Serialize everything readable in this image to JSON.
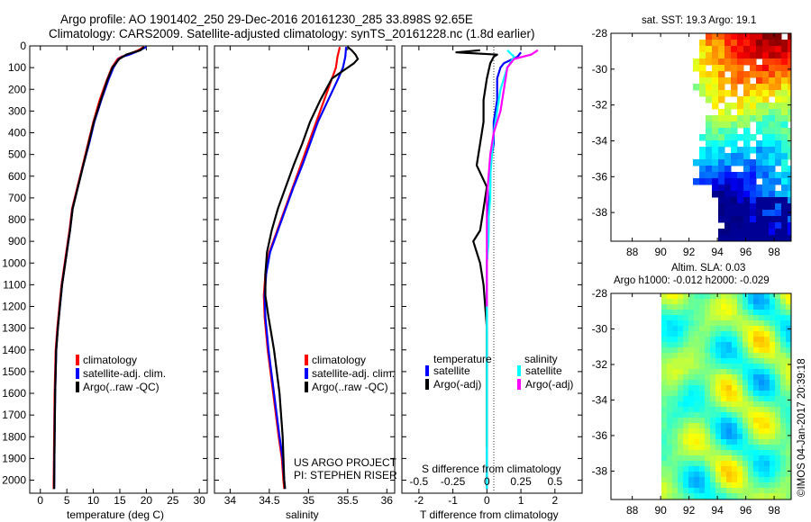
{
  "header": {
    "title_line1": "Argo profile: AO 1901402_250 29-Dec-2016 20161230_285 33.898S 92.65E",
    "title_line2": "Climatology: CARS2009. Satellite-adjusted climatology: synTS_20161228.nc (1.8d earlier)"
  },
  "colors": {
    "climatology": "#ff0000",
    "satellite": "#0000ff",
    "argo": "#000000",
    "satellite_diff": "#00ffff",
    "argo_diff": "#ff00ff",
    "zero_line": "#000000"
  },
  "chart_data": [
    {
      "id": "temperature",
      "type": "line",
      "xlabel": "temperature (deg C)",
      "ylabel": "",
      "xlim": [
        -2,
        31.5
      ],
      "ylim": [
        2060,
        0
      ],
      "xticks": [
        "0",
        "5",
        "10",
        "15",
        "20",
        "25",
        "30"
      ],
      "xtick_values": [
        0,
        5,
        10,
        15,
        20,
        25,
        30
      ],
      "yticks": [
        "0",
        "100",
        "200",
        "300",
        "400",
        "500",
        "600",
        "700",
        "800",
        "900",
        "1000",
        "1100",
        "1200",
        "1300",
        "1400",
        "1500",
        "1600",
        "1700",
        "1800",
        "1900",
        "2000"
      ],
      "ytick_values": [
        0,
        100,
        200,
        300,
        400,
        500,
        600,
        700,
        800,
        900,
        1000,
        1100,
        1200,
        1300,
        1400,
        1500,
        1600,
        1700,
        1800,
        1900,
        2000
      ],
      "legend": [
        "climatology",
        "satellite-adj. clim.",
        "Argo(..raw -QC)"
      ],
      "series": [
        {
          "name": "climatology",
          "color": "#ff0000",
          "x": [
            19.5,
            18.5,
            16.5,
            15.3,
            14.6,
            13.5,
            12.5,
            11.2,
            10.0,
            9.0,
            8.0,
            7.0,
            6.0,
            5.5,
            5.2,
            4.6,
            4.0,
            3.6,
            3.2,
            2.9,
            2.7,
            2.6,
            2.5
          ],
          "y": [
            5,
            20,
            40,
            50,
            60,
            100,
            160,
            250,
            350,
            450,
            550,
            650,
            750,
            850,
            900,
            1000,
            1100,
            1200,
            1300,
            1400,
            1600,
            1800,
            2040
          ]
        },
        {
          "name": "satellite-adj. clim.",
          "color": "#0000ff",
          "x": [
            20.0,
            18.8,
            16.8,
            15.5,
            14.8,
            13.8,
            12.8,
            11.5,
            10.2,
            9.2,
            8.1,
            7.1,
            6.1,
            5.6,
            5.3,
            4.7,
            4.1,
            3.7,
            3.3,
            3.0,
            2.8,
            2.7,
            2.6
          ],
          "y": [
            5,
            20,
            40,
            50,
            60,
            100,
            160,
            250,
            350,
            450,
            550,
            650,
            750,
            850,
            900,
            1000,
            1100,
            1200,
            1300,
            1400,
            1600,
            1800,
            2040
          ]
        },
        {
          "name": "Argo(..raw -QC)",
          "color": "#000000",
          "x": [
            19.6,
            18.9,
            16.2,
            15.6,
            14.9,
            13.6,
            12.6,
            11.4,
            10.1,
            9.1,
            8.1,
            7.1,
            6.1,
            5.6,
            5.3,
            4.7,
            4.1,
            3.7,
            3.3,
            3.0,
            2.8,
            2.7,
            2.6
          ],
          "y": [
            5,
            20,
            40,
            50,
            60,
            100,
            160,
            250,
            350,
            450,
            550,
            650,
            750,
            850,
            900,
            1000,
            1100,
            1200,
            1300,
            1400,
            1600,
            1800,
            2040
          ]
        }
      ]
    },
    {
      "id": "salinity",
      "type": "line",
      "xlabel": "salinity",
      "xlim": [
        33.8,
        36.1
      ],
      "ylim": [
        2060,
        0
      ],
      "xticks": [
        "34",
        "34.5",
        "35",
        "35.5",
        "36"
      ],
      "xtick_values": [
        34,
        34.5,
        35,
        35.5,
        36
      ],
      "legend": [
        "climatology",
        "satellite-adj. clim.",
        "Argo(..raw -QC)"
      ],
      "annotations": [
        "US ARGO PROJECT",
        "PI: STEPHEN RISER"
      ],
      "series": [
        {
          "name": "climatology",
          "color": "#ff0000",
          "x": [
            35.4,
            35.37,
            35.35,
            35.3,
            35.2,
            35.1,
            35.0,
            34.9,
            34.8,
            34.7,
            34.6,
            34.5,
            34.45,
            34.43,
            34.44,
            34.48,
            34.55,
            34.62,
            34.66,
            34.68,
            34.69
          ],
          "y": [
            5,
            50,
            100,
            150,
            250,
            350,
            450,
            550,
            650,
            750,
            850,
            950,
            1050,
            1150,
            1250,
            1400,
            1600,
            1800,
            1900,
            2000,
            2040
          ]
        },
        {
          "name": "satellite-adj. clim.",
          "color": "#0000ff",
          "x": [
            35.48,
            35.47,
            35.44,
            35.38,
            35.25,
            35.12,
            35.02,
            34.92,
            34.81,
            34.71,
            34.61,
            34.51,
            34.46,
            34.44,
            34.45,
            34.49,
            34.56,
            34.63,
            34.67,
            34.69,
            34.7
          ],
          "y": [
            5,
            50,
            100,
            150,
            250,
            350,
            450,
            550,
            650,
            750,
            850,
            950,
            1050,
            1150,
            1250,
            1400,
            1600,
            1800,
            1900,
            2000,
            2040
          ]
        },
        {
          "name": "Argo(..raw -QC)",
          "color": "#000000",
          "x": [
            35.5,
            35.55,
            35.6,
            35.63,
            35.58,
            35.5,
            35.3,
            35.15,
            35.02,
            34.92,
            34.81,
            34.71,
            34.61,
            34.53,
            34.47,
            34.45,
            34.45,
            34.49,
            34.56,
            34.63,
            34.67,
            34.69,
            34.7
          ],
          "y": [
            5,
            20,
            40,
            60,
            80,
            100,
            150,
            250,
            350,
            450,
            550,
            650,
            750,
            850,
            950,
            1050,
            1150,
            1250,
            1400,
            1600,
            1800,
            2000,
            2040
          ]
        }
      ]
    },
    {
      "id": "difference",
      "type": "line",
      "xlabel": "T difference from climatology",
      "top_axis_label": "S difference from climatology",
      "xlim": [
        -2.5,
        2.8
      ],
      "ylim": [
        2060,
        0
      ],
      "xticks": [
        "-2",
        "-1",
        "0",
        "1",
        "2"
      ],
      "xtick_values": [
        -2,
        -1,
        0,
        1,
        2
      ],
      "s_ticks": [
        "-0.5",
        "-0.25",
        "0",
        "0.25",
        "0.5"
      ],
      "s_tick_values": [
        -2,
        -1,
        0,
        1,
        2
      ],
      "legend_temperature_title": "temperature",
      "legend_salinity_title": "salinity",
      "legend": [
        "satellite",
        "Argo(-adj)"
      ],
      "series": [
        {
          "name": "temperature satellite",
          "color": "#0000ff",
          "x": [
            1.0,
            0.9,
            0.5,
            0.4,
            0.3,
            0.3,
            0.2,
            0.2,
            0.1,
            0.1,
            0.05,
            0.05,
            0.0,
            0.0,
            0.0,
            0.0,
            0.0
          ],
          "y": [
            30,
            50,
            80,
            100,
            150,
            250,
            350,
            450,
            550,
            650,
            750,
            850,
            1000,
            1200,
            1500,
            1800,
            2040
          ]
        },
        {
          "name": "temperature Argo(-adj)",
          "color": "#000000",
          "x": [
            -0.2,
            -0.9,
            0.3,
            0.2,
            0.1,
            0.0,
            -0.1,
            -0.1,
            -0.2,
            -0.3,
            0.0,
            -0.1,
            -0.2,
            -0.4,
            -0.2,
            -0.1,
            0.0,
            0.0,
            0.0
          ],
          "y": [
            20,
            30,
            40,
            50,
            80,
            150,
            250,
            350,
            450,
            550,
            650,
            750,
            850,
            900,
            1000,
            1100,
            1300,
            1600,
            1850
          ]
        },
        {
          "name": "salinity satellite",
          "color": "#00ffff",
          "x": [
            0.6,
            0.8,
            0.6,
            0.4,
            0.3,
            0.2,
            0.15,
            0.1,
            0.1,
            0.05,
            0.05,
            0.0,
            0.0,
            0.0,
            0.0,
            0.0
          ],
          "y": [
            20,
            50,
            100,
            200,
            300,
            400,
            500,
            600,
            700,
            800,
            900,
            1000,
            1200,
            1500,
            1800,
            2040
          ]
        },
        {
          "name": "salinity Argo(-adj)",
          "color": "#ff00ff",
          "x": [
            1.5,
            1.3,
            0.8,
            0.6,
            0.5,
            0.4,
            0.2,
            0.1,
            0.05,
            0.0,
            0.0,
            0.0,
            0.0
          ],
          "y": [
            20,
            40,
            60,
            100,
            200,
            300,
            400,
            500,
            600,
            700,
            800,
            1000,
            1200
          ]
        }
      ]
    },
    {
      "id": "sst_map",
      "type": "heatmap",
      "title": "sat. SST: 19.3 Argo: 19.1",
      "xticks": [
        "88",
        "90",
        "92",
        "94",
        "96",
        "98"
      ],
      "xtick_values": [
        88,
        90,
        92,
        94,
        96,
        98
      ],
      "yticks": [
        "-28",
        "-30",
        "-32",
        "-34",
        "-36",
        "-38"
      ],
      "ytick_values": [
        -28,
        -30,
        -32,
        -34,
        -36,
        -38
      ],
      "xlim": [
        86.5,
        99.2
      ],
      "ylim": [
        -39.6,
        -28
      ]
    },
    {
      "id": "sla_map",
      "type": "heatmap",
      "title": "Altim. SLA: 0.03",
      "subtitle": "Argo h1000: -0.012 h2000: -0.029",
      "xticks": [
        "88",
        "90",
        "92",
        "94",
        "96",
        "98"
      ],
      "xtick_values": [
        88,
        90,
        92,
        94,
        96,
        98
      ],
      "yticks": [
        "-28",
        "-30",
        "-32",
        "-34",
        "-36",
        "-38"
      ],
      "ytick_values": [
        -28,
        -30,
        -32,
        -34,
        -36,
        -38
      ],
      "xlim": [
        86.5,
        99.2
      ],
      "ylim": [
        -39.6,
        -28
      ]
    }
  ],
  "footer": {
    "vertical_stamp": "©IMOS 04-Jan-2017 20:39:18"
  }
}
